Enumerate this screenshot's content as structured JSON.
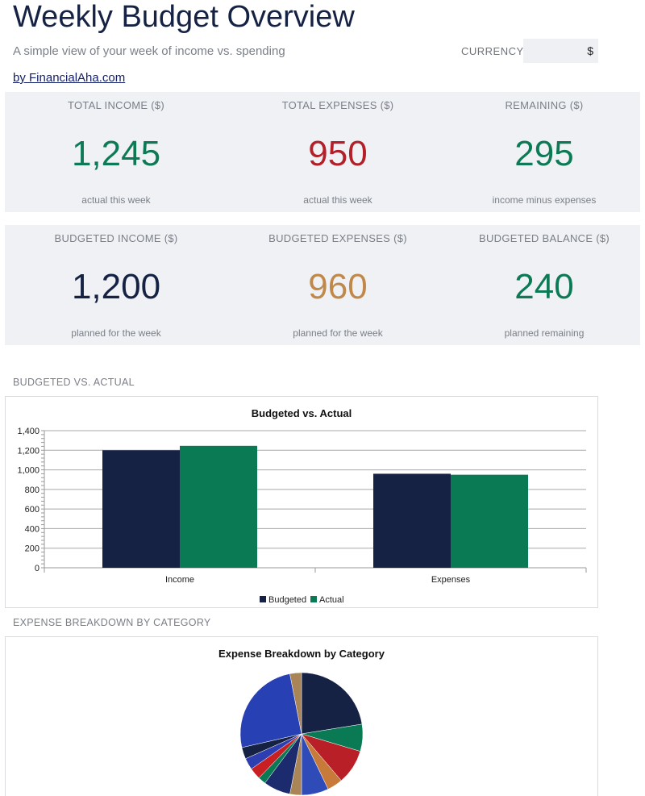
{
  "header": {
    "title": "Weekly Budget Overview",
    "subtitle": "A simple view of your week of income vs. spending",
    "currency_label": "CURRENCY",
    "currency_value": "$",
    "byline": "by FinancialAha.com"
  },
  "kpis_actual": [
    {
      "label": "TOTAL INCOME ($)",
      "value": "1,245",
      "note": "actual this week",
      "color": "#0e7a55"
    },
    {
      "label": "TOTAL EXPENSES ($)",
      "value": "950",
      "note": "actual this week",
      "color": "#b3202a"
    },
    {
      "label": "REMAINING ($)",
      "value": "295",
      "note": "income minus expenses",
      "color": "#0e7a55"
    }
  ],
  "kpis_budget": [
    {
      "label": "BUDGETED INCOME ($)",
      "value": "1,200",
      "note": "planned for the week",
      "color": "#162244"
    },
    {
      "label": "BUDGETED EXPENSES ($)",
      "value": "960",
      "note": "planned for the week",
      "color": "#c0894a"
    },
    {
      "label": "BUDGETED BALANCE ($)",
      "value": "240",
      "note": "planned remaining",
      "color": "#0e7a55"
    }
  ],
  "sections": {
    "bar_label": "BUDGETED VS. ACTUAL",
    "pie_label": "EXPENSE BREAKDOWN BY CATEGORY"
  },
  "chart_data": [
    {
      "type": "bar",
      "title": "Budgeted vs. Actual",
      "categories": [
        "Income",
        "Expenses"
      ],
      "series": [
        {
          "name": "Budgeted",
          "values": [
            1200,
            960
          ],
          "color": "#162244"
        },
        {
          "name": "Actual",
          "values": [
            1245,
            950
          ],
          "color": "#0a7a55"
        }
      ],
      "ylim": [
        0,
        1400
      ],
      "yticks": [
        "0",
        "200",
        "400",
        "600",
        "800",
        "1,000",
        "1,200",
        "1,400"
      ],
      "grid": true,
      "legend": "bottom"
    },
    {
      "type": "pie",
      "title": "Expense Breakdown by Category",
      "values": [
        22,
        7,
        9,
        4,
        7,
        3,
        7,
        2,
        3,
        3,
        3,
        25,
        3
      ],
      "colors": [
        "#162244",
        "#0a7a55",
        "#b81f26",
        "#c77a3a",
        "#2f4bb8",
        "#a88456",
        "#1b2b6e",
        "#0a7a55",
        "#c71f22",
        "#2d3fb0",
        "#162244",
        "#2740b3",
        "#a88456"
      ]
    }
  ]
}
